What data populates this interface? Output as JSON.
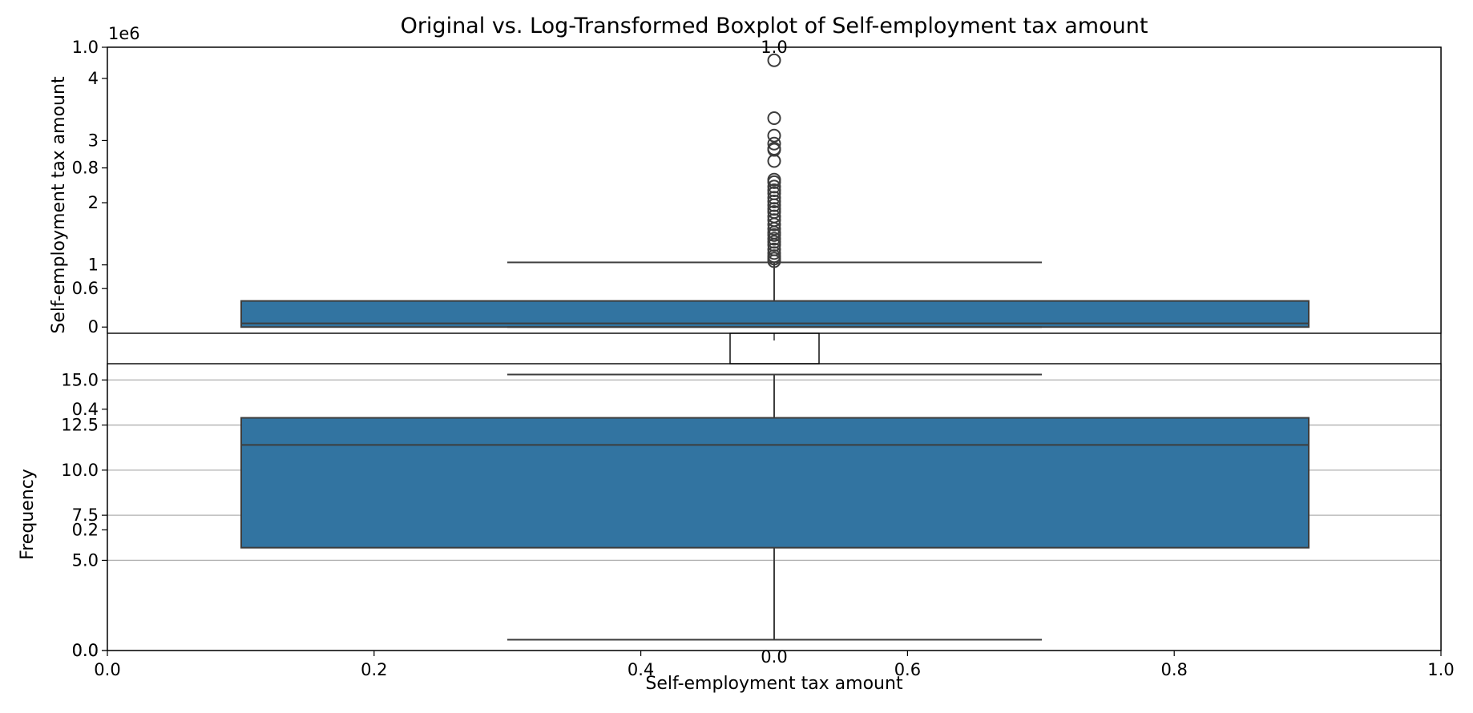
{
  "figure": {
    "title": "Original vs. Log-Transformed Boxplot of Self-employment tax amount",
    "offset_label": "1e6",
    "background_axes": {
      "x_ticks": [
        "0.0",
        "0.2",
        "0.4",
        "0.6",
        "0.8",
        "1.0"
      ],
      "y_ticks": [
        "0.0",
        "0.2",
        "0.4",
        "0.6",
        "0.8",
        "1.0"
      ],
      "xlim": [
        0,
        1
      ],
      "ylim": [
        0,
        1
      ],
      "ylabel": "Frequency"
    },
    "inset_axes": {
      "x_tick": "0.0",
      "y_tick": "1.0"
    }
  },
  "colors": {
    "box_fill": "#3274a1",
    "box_edge": "#3d3d3d",
    "grid": "#b0b0b0",
    "axis": "#000000"
  },
  "chart_data": [
    {
      "type": "box",
      "panel": "top",
      "ylabel": "Self-employment tax amount",
      "y_scale_factor": 1000000,
      "ylim": [
        -0.1,
        4.5
      ],
      "y_ticks": [
        {
          "value": 0,
          "label": "0"
        },
        {
          "value": 1,
          "label": "1"
        },
        {
          "value": 2,
          "label": "2"
        },
        {
          "value": 3,
          "label": "3"
        },
        {
          "value": 4,
          "label": "4"
        }
      ],
      "box": {
        "q1": 0.0,
        "median": 0.06,
        "q3": 0.42,
        "whisker_low": 0.0,
        "whisker_high": 1.04
      },
      "outliers": [
        4.29,
        3.36,
        3.08,
        2.95,
        2.87,
        2.85,
        2.67,
        2.37,
        2.33,
        2.26,
        2.2,
        2.15,
        2.08,
        2.02,
        1.96,
        1.9,
        1.85,
        1.78,
        1.72,
        1.65,
        1.58,
        1.52,
        1.48,
        1.42,
        1.37,
        1.32,
        1.25,
        1.19,
        1.14,
        1.1,
        1.06
      ]
    },
    {
      "type": "box",
      "panel": "bottom",
      "xlabel": "Self-employment tax amount",
      "ylim": [
        0,
        15.9
      ],
      "y_ticks": [
        {
          "value": 0,
          "label": "0.0"
        },
        {
          "value": 5,
          "label": "5.0"
        },
        {
          "value": 7.5,
          "label": "7.5"
        },
        {
          "value": 10,
          "label": "10.0"
        },
        {
          "value": 12.5,
          "label": "12.5"
        },
        {
          "value": 15,
          "label": "15.0"
        }
      ],
      "grid": true,
      "box": {
        "q1": 5.7,
        "median": 11.4,
        "q3": 12.9,
        "whisker_low": 0.6,
        "whisker_high": 15.3
      },
      "outliers": []
    }
  ]
}
